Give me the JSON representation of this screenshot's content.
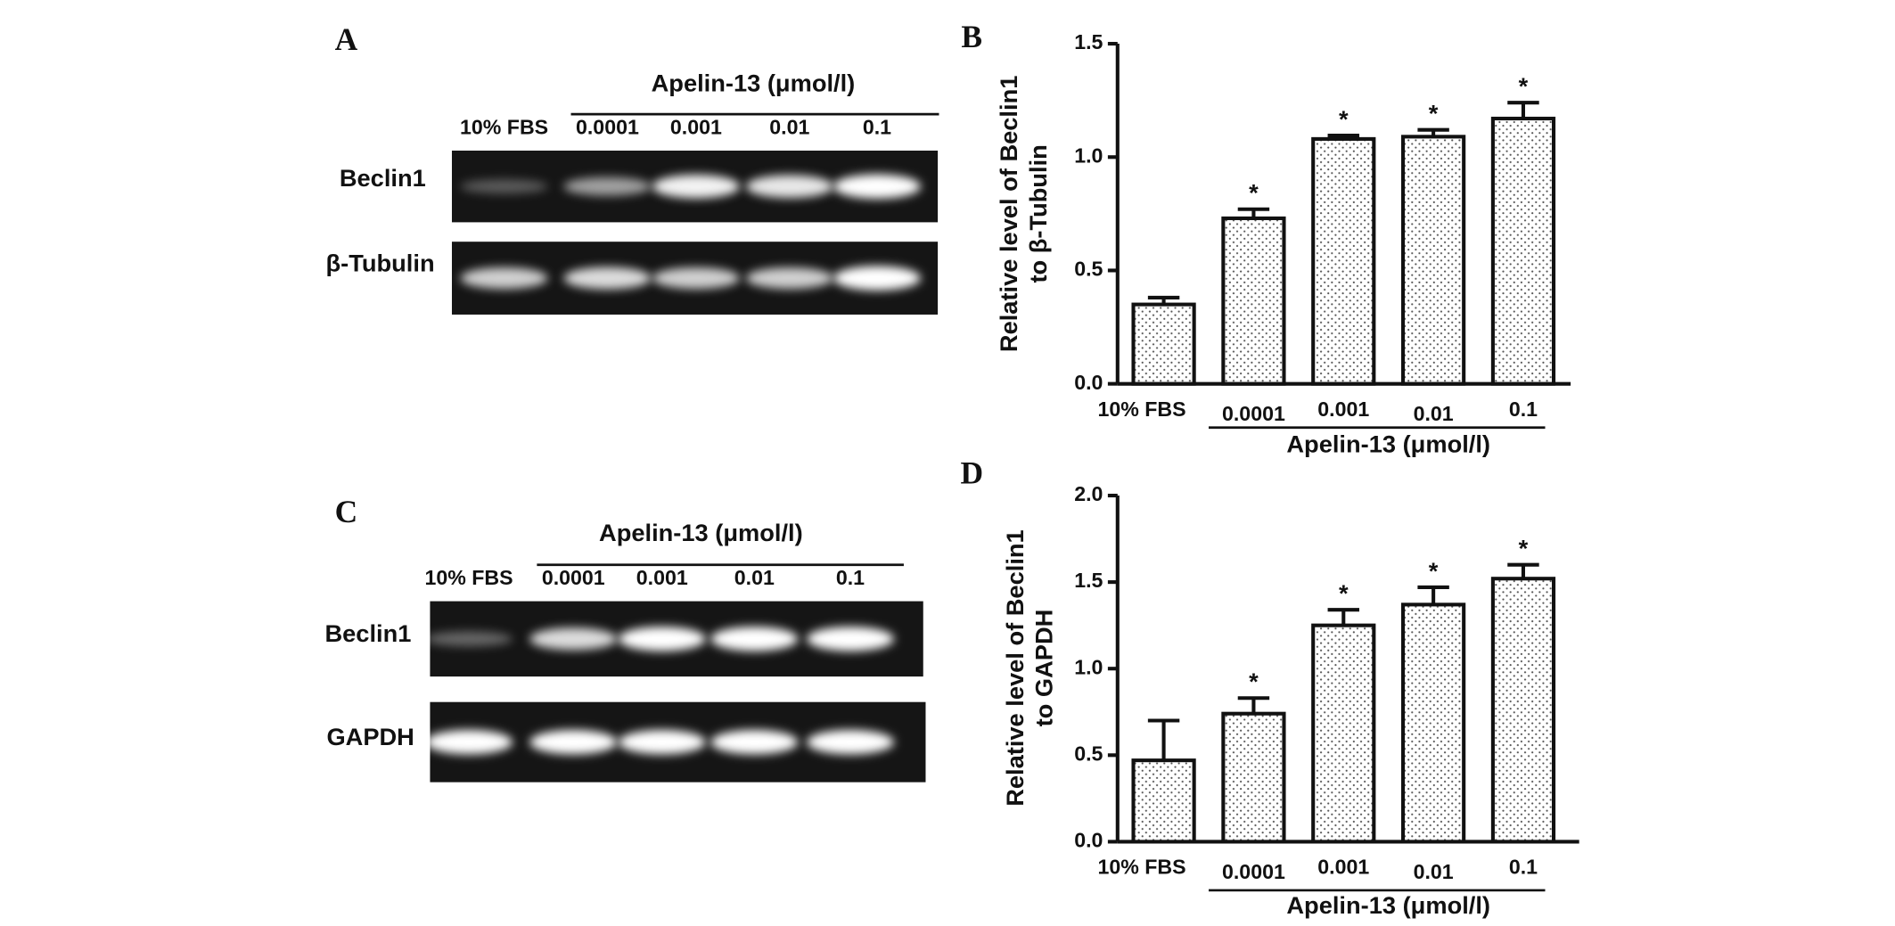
{
  "blots": [
    {
      "panel": "A",
      "treatment": "Apelin-13 (μmol/l)",
      "lanes": [
        "10% FBS",
        "0.0001",
        "0.001",
        "0.01",
        "0.1"
      ],
      "rows": [
        "Beclin1",
        "β-Tubulin"
      ]
    },
    {
      "panel": "C",
      "treatment": "Apelin-13 (μmol/l)",
      "lanes": [
        "10% FBS",
        "0.0001",
        "0.001",
        "0.01",
        "0.1"
      ],
      "rows": [
        "Beclin1",
        "GAPDH"
      ]
    }
  ],
  "chart_data": [
    {
      "type": "bar",
      "panel": "B",
      "ylabel": [
        "Relative level of Beclin1",
        "to β-Tubulin"
      ],
      "categories": [
        "10% FBS",
        "0.0001",
        "0.001",
        "0.01",
        "0.1"
      ],
      "values": [
        0.35,
        0.73,
        1.08,
        1.09,
        1.17
      ],
      "errors": [
        0.03,
        0.04,
        0.015,
        0.03,
        0.07
      ],
      "significance": [
        null,
        "*",
        "*",
        "*",
        "*"
      ],
      "group_label": "Apelin-13 (μmol/l)",
      "ylim": [
        0,
        1.5
      ],
      "yticks": [
        {
          "value": 0,
          "label": "0.0"
        },
        {
          "value": 0.5,
          "label": "0.5"
        },
        {
          "value": 1,
          "label": "1.0"
        },
        {
          "value": 1.5,
          "label": "1.5"
        }
      ]
    },
    {
      "type": "bar",
      "panel": "D",
      "ylabel": [
        "Relative level of Beclin1",
        "to GAPDH"
      ],
      "categories": [
        "10% FBS",
        "0.0001",
        "0.001",
        "0.01",
        "0.1"
      ],
      "values": [
        0.47,
        0.74,
        1.25,
        1.37,
        1.52
      ],
      "errors": [
        0.23,
        0.09,
        0.09,
        0.1,
        0.08
      ],
      "significance": [
        null,
        "*",
        "*",
        "*",
        "*"
      ],
      "group_label": "Apelin-13 (μmol/l)",
      "ylim": [
        0,
        2
      ],
      "yticks": [
        {
          "value": 0,
          "label": "0.0"
        },
        {
          "value": 0.5,
          "label": "0.5"
        },
        {
          "value": 1,
          "label": "1.0"
        },
        {
          "value": 1.5,
          "label": "1.5"
        },
        {
          "value": 2,
          "label": "2.0"
        }
      ]
    }
  ]
}
